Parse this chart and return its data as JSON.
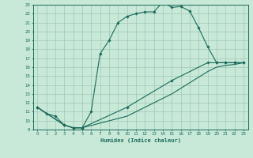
{
  "title": "",
  "xlabel": "Humidex (Indice chaleur)",
  "xlim": [
    -0.5,
    23.5
  ],
  "ylim": [
    9,
    23
  ],
  "bg_color": "#c8e8d8",
  "line_color": "#1a6b5a",
  "grid_color": "#a0c8b8",
  "line1_x": [
    0,
    1,
    2,
    3,
    4,
    5,
    6,
    7,
    8,
    9,
    10,
    11,
    12,
    13,
    14,
    15,
    16,
    17,
    18,
    19,
    20,
    21,
    22,
    23
  ],
  "line1_y": [
    11.5,
    10.8,
    10.5,
    9.5,
    9.2,
    9.2,
    11.0,
    17.5,
    19.0,
    21.0,
    21.7,
    22.0,
    22.2,
    22.2,
    23.3,
    22.7,
    22.8,
    22.3,
    20.4,
    18.3,
    16.5,
    16.5,
    16.5,
    16.5
  ],
  "line2_x": [
    0,
    3,
    4,
    5,
    10,
    15,
    19,
    20,
    21,
    22,
    23
  ],
  "line2_y": [
    11.5,
    9.5,
    9.2,
    9.2,
    11.5,
    14.5,
    16.5,
    16.5,
    16.5,
    16.5,
    16.5
  ],
  "line3_x": [
    0,
    3,
    4,
    5,
    10,
    15,
    19,
    20,
    21,
    22,
    23
  ],
  "line3_y": [
    11.5,
    9.5,
    9.2,
    9.2,
    10.5,
    13.0,
    15.5,
    16.0,
    16.2,
    16.3,
    16.5
  ],
  "xticks": [
    0,
    1,
    2,
    3,
    4,
    5,
    6,
    7,
    8,
    9,
    10,
    11,
    12,
    13,
    14,
    15,
    16,
    17,
    18,
    19,
    20,
    21,
    22,
    23
  ],
  "yticks": [
    9,
    10,
    11,
    12,
    13,
    14,
    15,
    16,
    17,
    18,
    19,
    20,
    21,
    22,
    23
  ]
}
